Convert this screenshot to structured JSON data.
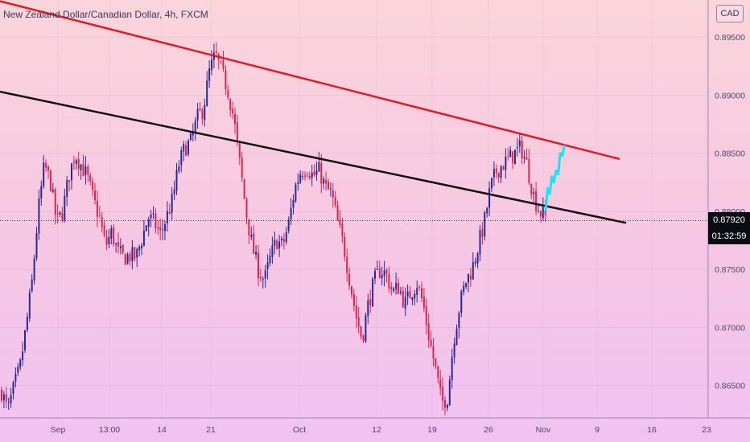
{
  "header": {
    "symbol_title": "New Zealand Dollar/Canadian Dollar, 4h, FXCM",
    "currency_button": "CAD"
  },
  "price_scale": {
    "ticks": [
      "0.89500",
      "0.89000",
      "0.88500",
      "0.88000",
      "0.87500",
      "0.87000",
      "0.86500"
    ],
    "current_price": "0.87920",
    "countdown": "01:32:59",
    "current_price_bg": "#0b0b14",
    "countdown_bg": "#0b0b14"
  },
  "time_axis": {
    "ticks": [
      "Sep",
      "13:00",
      "14",
      "21",
      "Oct",
      "12",
      "19",
      "26",
      "Nov",
      "9",
      "16",
      "23"
    ]
  },
  "colors": {
    "bull_candle": "#2a2a8f",
    "bear_candle": "#d6264f",
    "resistance_line": "#e01b24",
    "support_line": "#111111",
    "projection": "#19e3f0"
  },
  "chart_data": {
    "type": "candlestick",
    "title": "New Zealand Dollar/Canadian Dollar, 4h, FXCM",
    "ylim": [
      0.8622,
      0.8982
    ],
    "y_ticks": [
      0.895,
      0.89,
      0.885,
      0.88,
      0.875,
      0.87,
      0.865
    ],
    "current_price": 0.8792,
    "price_path": [
      [
        0.8645,
        0.8628,
        0.8648,
        0.8665,
        0.87,
        0.874,
        0.88,
        0.884,
        0.8825,
        0.879,
        0.88,
        0.883,
        0.885,
        0.884,
        0.883,
        0.881
      ],
      [
        0.8795,
        0.877,
        0.8782,
        0.8765,
        0.876,
        0.8762,
        0.876,
        0.8777,
        0.8795,
        0.879,
        0.878,
        0.8795,
        0.881,
        0.884,
        0.8855,
        0.886
      ],
      [
        0.888,
        0.8888,
        0.892,
        0.8935,
        0.892,
        0.8905,
        0.888,
        0.884,
        0.88,
        0.877,
        0.875,
        0.874,
        0.876,
        0.8775,
        0.877,
        0.879
      ],
      [
        0.882,
        0.8835,
        0.8838,
        0.883,
        0.8835,
        0.882,
        0.8815,
        0.879,
        0.877,
        0.874,
        0.871,
        0.869,
        0.872,
        0.874,
        0.875,
        0.8745
      ],
      [
        0.873,
        0.8735,
        0.872,
        0.873,
        0.8738,
        0.872,
        0.869,
        0.8665,
        0.8635,
        0.864,
        0.869,
        0.872,
        0.874,
        0.875,
        0.877,
        0.879
      ],
      [
        0.882,
        0.8835,
        0.884,
        0.8845,
        0.885,
        0.8855,
        0.884,
        0.8815,
        0.88,
        0.8795
      ]
    ],
    "resistance_line": {
      "start": [
        "Aug",
        0.8981
      ],
      "end": [
        "Nov 12",
        0.8845
      ]
    },
    "support_line": {
      "start": [
        "Aug",
        0.8903
      ],
      "end": [
        "Nov 12",
        0.879
      ]
    },
    "projection": [
      0.88,
      0.882,
      0.8815,
      0.883,
      0.8825,
      0.8835,
      0.8832,
      0.885,
      0.8848,
      0.8857
    ]
  }
}
